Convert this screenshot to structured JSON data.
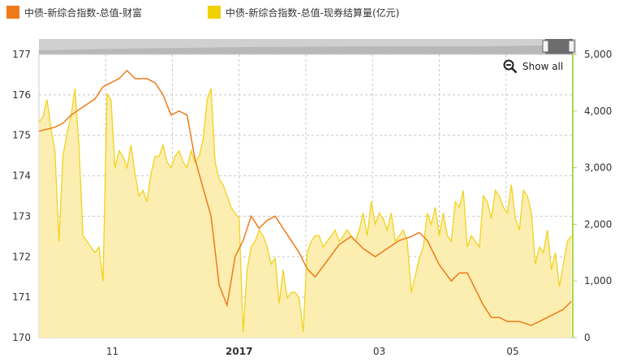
{
  "legend": {
    "items": [
      {
        "label": "中债-新综合指数-总值-财富",
        "color": "#f07a1a"
      },
      {
        "label": "中债-新综合指数-总值-现券结算量(亿元)",
        "color": "#f0d000"
      }
    ]
  },
  "controls": {
    "show_all_label": "Show all",
    "zoom_icon": "zoom-out-icon"
  },
  "colors": {
    "wealth_line": "#f07a1a",
    "volume_line": "#f2d21e",
    "volume_fill": "#fbeeb0",
    "right_axis": "#a8d84e"
  },
  "chart_data": {
    "type": "line",
    "title": "",
    "x_tick_labels": [
      "11",
      "2017",
      "03",
      "05"
    ],
    "y_left": {
      "ticks": [
        170,
        171,
        172,
        173,
        174,
        175,
        176,
        177
      ],
      "range": [
        170,
        177
      ]
    },
    "y_right": {
      "ticks": [
        "0",
        "1,000",
        "2,000",
        "3,000",
        "4,000",
        "5,000"
      ],
      "range": [
        0,
        5000
      ]
    },
    "grid": true,
    "x_range_months": [
      0,
      8
    ],
    "series": [
      {
        "name": "中债-新综合指数-总值-财富",
        "axis": "left",
        "type": "line",
        "x": [
          0,
          0.24,
          0.36,
          0.48,
          0.66,
          0.84,
          0.96,
          1.2,
          1.32,
          1.44,
          1.62,
          1.74,
          1.86,
          1.98,
          2.1,
          2.22,
          2.34,
          2.46,
          2.58,
          2.7,
          2.82,
          2.94,
          3.06,
          3.18,
          3.3,
          3.42,
          3.54,
          3.66,
          3.78,
          3.9,
          4.02,
          4.14,
          4.32,
          4.5,
          4.68,
          4.86,
          5.04,
          5.22,
          5.4,
          5.58,
          5.7,
          5.82,
          6.0,
          6.18,
          6.3,
          6.42,
          6.54,
          6.66,
          6.78,
          6.9,
          7.02,
          7.2,
          7.38,
          7.5,
          7.62,
          7.74,
          7.86,
          7.98
        ],
        "y": [
          175.1,
          175.2,
          175.3,
          175.5,
          175.7,
          175.9,
          176.2,
          176.4,
          176.6,
          176.4,
          176.4,
          176.3,
          176.0,
          175.5,
          175.6,
          175.5,
          174.4,
          173.7,
          173.0,
          171.3,
          170.8,
          172.0,
          172.4,
          173.0,
          172.7,
          172.9,
          173.0,
          172.7,
          172.4,
          172.1,
          171.7,
          171.5,
          171.9,
          172.3,
          172.5,
          172.2,
          172.0,
          172.2,
          172.4,
          172.5,
          172.6,
          172.4,
          171.8,
          171.4,
          171.6,
          171.6,
          171.2,
          170.8,
          170.5,
          170.5,
          170.4,
          170.4,
          170.3,
          170.4,
          170.5,
          170.6,
          170.7,
          170.9
        ]
      },
      {
        "name": "中债-新综合指数-总值-现券结算量(亿元)",
        "axis": "right",
        "type": "area",
        "x": [
          0,
          0.06,
          0.12,
          0.18,
          0.24,
          0.3,
          0.36,
          0.42,
          0.48,
          0.54,
          0.6,
          0.66,
          0.72,
          0.78,
          0.84,
          0.9,
          0.96,
          1.02,
          1.08,
          1.14,
          1.2,
          1.26,
          1.32,
          1.38,
          1.44,
          1.5,
          1.56,
          1.62,
          1.68,
          1.74,
          1.8,
          1.86,
          1.92,
          1.98,
          2.04,
          2.1,
          2.16,
          2.22,
          2.28,
          2.34,
          2.4,
          2.46,
          2.52,
          2.58,
          2.64,
          2.7,
          2.76,
          2.82,
          2.88,
          2.94,
          3.0,
          3.06,
          3.12,
          3.18,
          3.24,
          3.3,
          3.36,
          3.42,
          3.48,
          3.54,
          3.6,
          3.66,
          3.72,
          3.78,
          3.84,
          3.9,
          3.96,
          4.02,
          4.08,
          4.14,
          4.2,
          4.26,
          4.32,
          4.38,
          4.44,
          4.5,
          4.56,
          4.62,
          4.68,
          4.74,
          4.8,
          4.86,
          4.92,
          4.98,
          5.04,
          5.1,
          5.16,
          5.22,
          5.28,
          5.34,
          5.4,
          5.46,
          5.52,
          5.58,
          5.64,
          5.7,
          5.76,
          5.82,
          5.88,
          5.94,
          6.0,
          6.06,
          6.12,
          6.18,
          6.24,
          6.3,
          6.36,
          6.42,
          6.48,
          6.54,
          6.6,
          6.66,
          6.72,
          6.78,
          6.84,
          6.9,
          6.96,
          7.02,
          7.08,
          7.14,
          7.2,
          7.26,
          7.32,
          7.38,
          7.44,
          7.5,
          7.56,
          7.62,
          7.68,
          7.74,
          7.8,
          7.86,
          7.92,
          7.98
        ],
        "y": [
          3800,
          3900,
          4200,
          3700,
          3300,
          1700,
          3200,
          3600,
          3900,
          4400,
          3400,
          1800,
          1700,
          1600,
          1500,
          1600,
          1000,
          4300,
          4200,
          3000,
          3300,
          3200,
          3000,
          3400,
          2900,
          2500,
          2600,
          2400,
          2900,
          3200,
          3200,
          3400,
          3100,
          3000,
          3200,
          3300,
          3100,
          3000,
          3300,
          3100,
          3200,
          3500,
          4200,
          4400,
          3100,
          2800,
          2700,
          2500,
          2300,
          2200,
          2100,
          100,
          1200,
          1600,
          1700,
          1900,
          1800,
          1600,
          1300,
          1400,
          600,
          1200,
          700,
          800,
          800,
          700,
          100,
          1500,
          1700,
          1800,
          1800,
          1600,
          1700,
          1800,
          1900,
          1700,
          1800,
          1900,
          1800,
          1700,
          1900,
          2200,
          1800,
          2400,
          2000,
          2200,
          2100,
          1900,
          2200,
          1700,
          1800,
          1900,
          1700,
          800,
          1100,
          1400,
          1600,
          2200,
          2000,
          2300,
          1800,
          2200,
          1800,
          1700,
          2400,
          2300,
          2600,
          1600,
          1800,
          1700,
          1600,
          2500,
          2400,
          2100,
          2600,
          2500,
          2300,
          2200,
          2700,
          2100,
          1900,
          2600,
          2500,
          2200,
          1300,
          1600,
          1500,
          1900,
          1200,
          1500,
          900,
          1300,
          1700,
          1800
        ]
      }
    ]
  }
}
